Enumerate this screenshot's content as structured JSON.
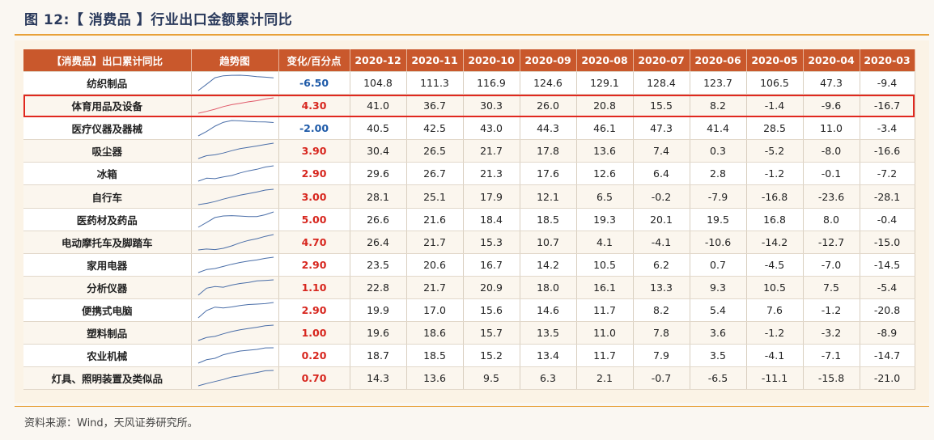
{
  "figure": {
    "title": "图 12:【 消费品 】行业出口金额累计同比",
    "source": "资料来源：Wind，天风证券研究所。"
  },
  "colors": {
    "header_bg": "#c9582c",
    "positive": "#d7261e",
    "negative": "#1e5aa8",
    "highlight": "#e0281f",
    "sparkline": "#4a6ea8",
    "sparkline_highlight": "#e05a6a"
  },
  "header": {
    "category": "【消费品】出口累计同比",
    "trend": "趋势图",
    "change": "变化/百分点",
    "months": [
      "2020-12",
      "2020-11",
      "2020-10",
      "2020-09",
      "2020-08",
      "2020-07",
      "2020-06",
      "2020-05",
      "2020-04",
      "2020-03"
    ]
  },
  "rows": [
    {
      "name": "纺织制品",
      "change": "-6.50",
      "values": [
        "104.8",
        "111.3",
        "116.9",
        "124.6",
        "129.1",
        "128.4",
        "123.7",
        "106.5",
        "47.3",
        "-9.4"
      ]
    },
    {
      "name": "体育用品及设备",
      "change": "4.30",
      "highlight": true,
      "values": [
        "41.0",
        "36.7",
        "30.3",
        "26.0",
        "20.8",
        "15.5",
        "8.2",
        "-1.4",
        "-9.6",
        "-16.7"
      ]
    },
    {
      "name": "医疗仪器及器械",
      "change": "-2.00",
      "values": [
        "40.5",
        "42.5",
        "43.0",
        "44.3",
        "46.1",
        "47.3",
        "41.4",
        "28.5",
        "11.0",
        "-3.4"
      ]
    },
    {
      "name": "吸尘器",
      "change": "3.90",
      "values": [
        "30.4",
        "26.5",
        "21.7",
        "17.8",
        "13.6",
        "7.4",
        "0.3",
        "-5.2",
        "-8.0",
        "-16.6"
      ]
    },
    {
      "name": "冰箱",
      "change": "2.90",
      "values": [
        "29.6",
        "26.7",
        "21.3",
        "17.6",
        "12.6",
        "6.4",
        "2.8",
        "-1.2",
        "-0.1",
        "-7.2"
      ]
    },
    {
      "name": "自行车",
      "change": "3.00",
      "values": [
        "28.1",
        "25.1",
        "17.9",
        "12.1",
        "6.5",
        "-0.2",
        "-7.9",
        "-16.8",
        "-23.6",
        "-28.1"
      ]
    },
    {
      "name": "医药材及药品",
      "change": "5.00",
      "values": [
        "26.6",
        "21.6",
        "18.4",
        "18.5",
        "19.3",
        "20.1",
        "19.5",
        "16.8",
        "8.0",
        "-0.4"
      ]
    },
    {
      "name": "电动摩托车及脚踏车",
      "change": "4.70",
      "values": [
        "26.4",
        "21.7",
        "15.3",
        "10.7",
        "4.1",
        "-4.1",
        "-10.6",
        "-14.2",
        "-12.7",
        "-15.0"
      ]
    },
    {
      "name": "家用电器",
      "change": "2.90",
      "values": [
        "23.5",
        "20.6",
        "16.7",
        "14.2",
        "10.5",
        "6.2",
        "0.7",
        "-4.5",
        "-7.0",
        "-14.5"
      ]
    },
    {
      "name": "分析仪器",
      "change": "1.10",
      "values": [
        "22.8",
        "21.7",
        "20.9",
        "18.0",
        "16.1",
        "13.3",
        "9.3",
        "10.5",
        "7.5",
        "-5.4"
      ]
    },
    {
      "name": "便携式电脑",
      "change": "2.90",
      "values": [
        "19.9",
        "17.0",
        "15.6",
        "14.6",
        "11.7",
        "8.2",
        "5.4",
        "7.6",
        "-1.2",
        "-20.8"
      ]
    },
    {
      "name": "塑料制品",
      "change": "1.00",
      "values": [
        "19.6",
        "18.6",
        "15.7",
        "13.5",
        "11.0",
        "7.8",
        "3.6",
        "-1.2",
        "-3.2",
        "-8.9"
      ]
    },
    {
      "name": "农业机械",
      "change": "0.20",
      "values": [
        "18.7",
        "18.5",
        "15.2",
        "13.4",
        "11.7",
        "7.9",
        "3.5",
        "-4.1",
        "-7.1",
        "-14.7"
      ]
    },
    {
      "name": "灯具、照明装置及类似品",
      "change": "0.70",
      "values": [
        "14.3",
        "13.6",
        "9.5",
        "6.3",
        "2.1",
        "-0.7",
        "-6.5",
        "-11.1",
        "-15.8",
        "-21.0"
      ]
    }
  ]
}
